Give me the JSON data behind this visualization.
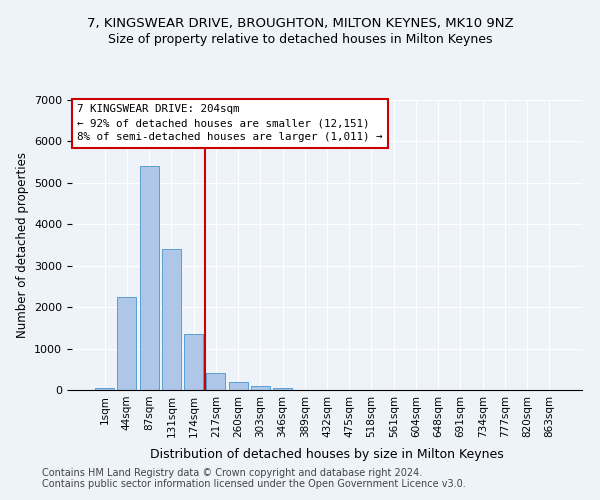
{
  "title1": "7, KINGSWEAR DRIVE, BROUGHTON, MILTON KEYNES, MK10 9NZ",
  "title2": "Size of property relative to detached houses in Milton Keynes",
  "xlabel": "Distribution of detached houses by size in Milton Keynes",
  "ylabel": "Number of detached properties",
  "footnote1": "Contains HM Land Registry data © Crown copyright and database right 2024.",
  "footnote2": "Contains public sector information licensed under the Open Government Licence v3.0.",
  "bar_labels": [
    "1sqm",
    "44sqm",
    "87sqm",
    "131sqm",
    "174sqm",
    "217sqm",
    "260sqm",
    "303sqm",
    "346sqm",
    "389sqm",
    "432sqm",
    "475sqm",
    "518sqm",
    "561sqm",
    "604sqm",
    "648sqm",
    "691sqm",
    "734sqm",
    "777sqm",
    "820sqm",
    "863sqm"
  ],
  "bar_values": [
    50,
    2250,
    5400,
    3400,
    1350,
    400,
    200,
    100,
    60,
    10,
    5,
    2,
    1,
    0,
    0,
    0,
    0,
    0,
    0,
    0,
    0
  ],
  "bar_color": "#aec6e8",
  "bar_edge_color": "#5a9fd4",
  "vline_color": "#cc0000",
  "vline_x_index": 5,
  "annotation_box_text": "7 KINGSWEAR DRIVE: 204sqm\n← 92% of detached houses are smaller (12,151)\n8% of semi-detached houses are larger (1,011) →",
  "ylim": [
    0,
    7000
  ],
  "yticks": [
    0,
    1000,
    2000,
    3000,
    4000,
    5000,
    6000,
    7000
  ],
  "bg_color": "#eef3fa",
  "plot_bg_color": "#eef3fa",
  "grid_color": "#ffffff",
  "title1_fontsize": 9.5,
  "title2_fontsize": 9,
  "xlabel_fontsize": 9,
  "ylabel_fontsize": 8.5,
  "footnote_fontsize": 7
}
